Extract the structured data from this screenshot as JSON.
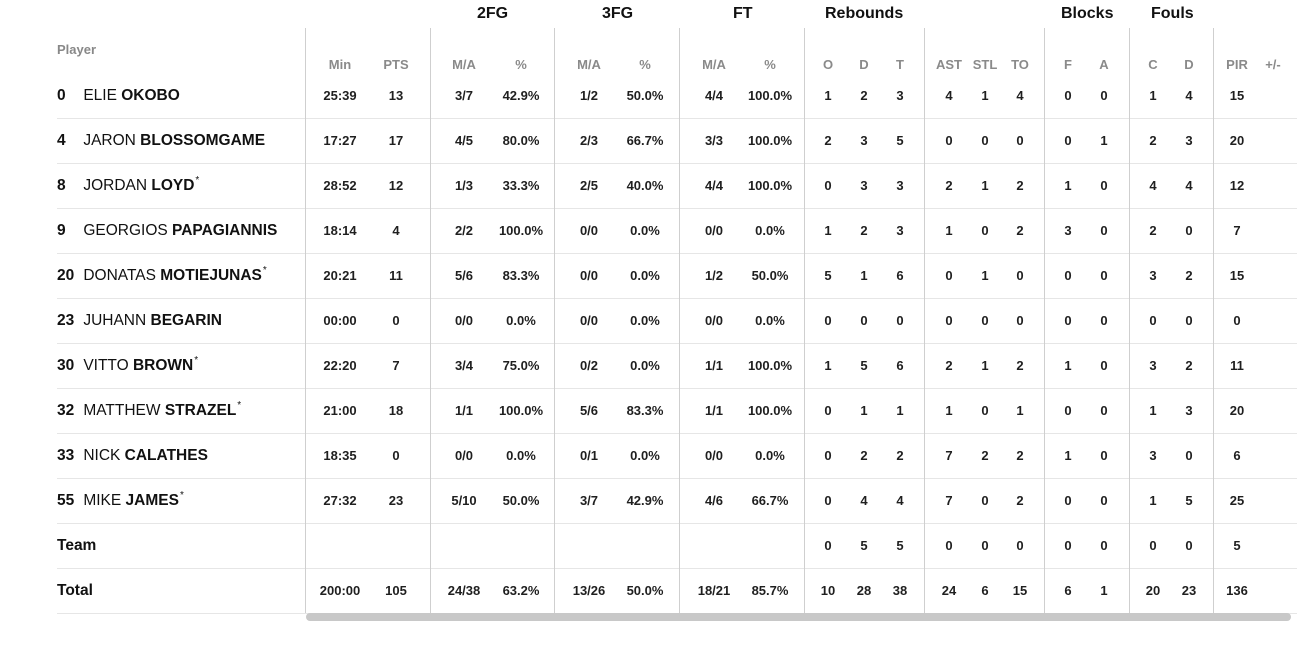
{
  "headers": {
    "player": "Player",
    "groups": {
      "fg2": "2FG",
      "fg3": "3FG",
      "ft": "FT",
      "rebounds": "Rebounds",
      "blocks": "Blocks",
      "fouls": "Fouls"
    },
    "cols": {
      "min": "Min",
      "pts": "PTS",
      "fg2_ma": "M/A",
      "fg2_pct": "%",
      "fg3_ma": "M/A",
      "fg3_pct": "%",
      "ft_ma": "M/A",
      "ft_pct": "%",
      "o": "O",
      "d": "D",
      "t": "T",
      "ast": "AST",
      "stl": "STL",
      "to": "TO",
      "bf": "F",
      "ba": "A",
      "fc": "C",
      "fd": "D",
      "pir": "PIR",
      "pm": "+/-"
    }
  },
  "rows": [
    {
      "num": "0",
      "first": "ELIE",
      "last": "OKOBO",
      "star": "",
      "min": "25:39",
      "pts": "13",
      "fg2_ma": "3/7",
      "fg2_pct": "42.9%",
      "fg3_ma": "1/2",
      "fg3_pct": "50.0%",
      "ft_ma": "4/4",
      "ft_pct": "100.0%",
      "o": "1",
      "d": "2",
      "t": "3",
      "ast": "4",
      "stl": "1",
      "to": "4",
      "bf": "0",
      "ba": "0",
      "fc": "1",
      "fd": "4",
      "pir": "15",
      "pm": ""
    },
    {
      "num": "4",
      "first": "JARON",
      "last": "BLOSSOMGAME",
      "star": "",
      "min": "17:27",
      "pts": "17",
      "fg2_ma": "4/5",
      "fg2_pct": "80.0%",
      "fg3_ma": "2/3",
      "fg3_pct": "66.7%",
      "ft_ma": "3/3",
      "ft_pct": "100.0%",
      "o": "2",
      "d": "3",
      "t": "5",
      "ast": "0",
      "stl": "0",
      "to": "0",
      "bf": "0",
      "ba": "1",
      "fc": "2",
      "fd": "3",
      "pir": "20",
      "pm": ""
    },
    {
      "num": "8",
      "first": "JORDAN",
      "last": "LOYD",
      "star": "*",
      "min": "28:52",
      "pts": "12",
      "fg2_ma": "1/3",
      "fg2_pct": "33.3%",
      "fg3_ma": "2/5",
      "fg3_pct": "40.0%",
      "ft_ma": "4/4",
      "ft_pct": "100.0%",
      "o": "0",
      "d": "3",
      "t": "3",
      "ast": "2",
      "stl": "1",
      "to": "2",
      "bf": "1",
      "ba": "0",
      "fc": "4",
      "fd": "4",
      "pir": "12",
      "pm": ""
    },
    {
      "num": "9",
      "first": "GEORGIOS",
      "last": "PAPAGIANNIS",
      "star": "",
      "min": "18:14",
      "pts": "4",
      "fg2_ma": "2/2",
      "fg2_pct": "100.0%",
      "fg3_ma": "0/0",
      "fg3_pct": "0.0%",
      "ft_ma": "0/0",
      "ft_pct": "0.0%",
      "o": "1",
      "d": "2",
      "t": "3",
      "ast": "1",
      "stl": "0",
      "to": "2",
      "bf": "3",
      "ba": "0",
      "fc": "2",
      "fd": "0",
      "pir": "7",
      "pm": ""
    },
    {
      "num": "20",
      "first": "DONATAS",
      "last": "MOTIEJUNAS",
      "star": "*",
      "min": "20:21",
      "pts": "11",
      "fg2_ma": "5/6",
      "fg2_pct": "83.3%",
      "fg3_ma": "0/0",
      "fg3_pct": "0.0%",
      "ft_ma": "1/2",
      "ft_pct": "50.0%",
      "o": "5",
      "d": "1",
      "t": "6",
      "ast": "0",
      "stl": "1",
      "to": "0",
      "bf": "0",
      "ba": "0",
      "fc": "3",
      "fd": "2",
      "pir": "15",
      "pm": ""
    },
    {
      "num": "23",
      "first": "JUHANN",
      "last": "BEGARIN",
      "star": "",
      "min": "00:00",
      "pts": "0",
      "fg2_ma": "0/0",
      "fg2_pct": "0.0%",
      "fg3_ma": "0/0",
      "fg3_pct": "0.0%",
      "ft_ma": "0/0",
      "ft_pct": "0.0%",
      "o": "0",
      "d": "0",
      "t": "0",
      "ast": "0",
      "stl": "0",
      "to": "0",
      "bf": "0",
      "ba": "0",
      "fc": "0",
      "fd": "0",
      "pir": "0",
      "pm": ""
    },
    {
      "num": "30",
      "first": "VITTO",
      "last": "BROWN",
      "star": "*",
      "min": "22:20",
      "pts": "7",
      "fg2_ma": "3/4",
      "fg2_pct": "75.0%",
      "fg3_ma": "0/2",
      "fg3_pct": "0.0%",
      "ft_ma": "1/1",
      "ft_pct": "100.0%",
      "o": "1",
      "d": "5",
      "t": "6",
      "ast": "2",
      "stl": "1",
      "to": "2",
      "bf": "1",
      "ba": "0",
      "fc": "3",
      "fd": "2",
      "pir": "11",
      "pm": ""
    },
    {
      "num": "32",
      "first": "MATTHEW",
      "last": "STRAZEL",
      "star": "*",
      "min": "21:00",
      "pts": "18",
      "fg2_ma": "1/1",
      "fg2_pct": "100.0%",
      "fg3_ma": "5/6",
      "fg3_pct": "83.3%",
      "ft_ma": "1/1",
      "ft_pct": "100.0%",
      "o": "0",
      "d": "1",
      "t": "1",
      "ast": "1",
      "stl": "0",
      "to": "1",
      "bf": "0",
      "ba": "0",
      "fc": "1",
      "fd": "3",
      "pir": "20",
      "pm": ""
    },
    {
      "num": "33",
      "first": "NICK",
      "last": "CALATHES",
      "star": "",
      "min": "18:35",
      "pts": "0",
      "fg2_ma": "0/0",
      "fg2_pct": "0.0%",
      "fg3_ma": "0/1",
      "fg3_pct": "0.0%",
      "ft_ma": "0/0",
      "ft_pct": "0.0%",
      "o": "0",
      "d": "2",
      "t": "2",
      "ast": "7",
      "stl": "2",
      "to": "2",
      "bf": "1",
      "ba": "0",
      "fc": "3",
      "fd": "0",
      "pir": "6",
      "pm": ""
    },
    {
      "num": "55",
      "first": "MIKE",
      "last": "JAMES",
      "star": "*",
      "min": "27:32",
      "pts": "23",
      "fg2_ma": "5/10",
      "fg2_pct": "50.0%",
      "fg3_ma": "3/7",
      "fg3_pct": "42.9%",
      "ft_ma": "4/6",
      "ft_pct": "66.7%",
      "o": "0",
      "d": "4",
      "t": "4",
      "ast": "7",
      "stl": "0",
      "to": "2",
      "bf": "0",
      "ba": "0",
      "fc": "1",
      "fd": "5",
      "pir": "25",
      "pm": ""
    },
    {
      "num": "",
      "first": "",
      "last": "Team",
      "star": "",
      "min": "",
      "pts": "",
      "fg2_ma": "",
      "fg2_pct": "",
      "fg3_ma": "",
      "fg3_pct": "",
      "ft_ma": "",
      "ft_pct": "",
      "o": "0",
      "d": "5",
      "t": "5",
      "ast": "0",
      "stl": "0",
      "to": "0",
      "bf": "0",
      "ba": "0",
      "fc": "0",
      "fd": "0",
      "pir": "5",
      "pm": ""
    },
    {
      "num": "",
      "first": "",
      "last": "Total",
      "star": "",
      "min": "200:00",
      "pts": "105",
      "fg2_ma": "24/38",
      "fg2_pct": "63.2%",
      "fg3_ma": "13/26",
      "fg3_pct": "50.0%",
      "ft_ma": "18/21",
      "ft_pct": "85.7%",
      "o": "10",
      "d": "28",
      "t": "38",
      "ast": "24",
      "stl": "6",
      "to": "15",
      "bf": "6",
      "ba": "1",
      "fc": "20",
      "fd": "23",
      "pir": "136",
      "pm": ""
    }
  ]
}
